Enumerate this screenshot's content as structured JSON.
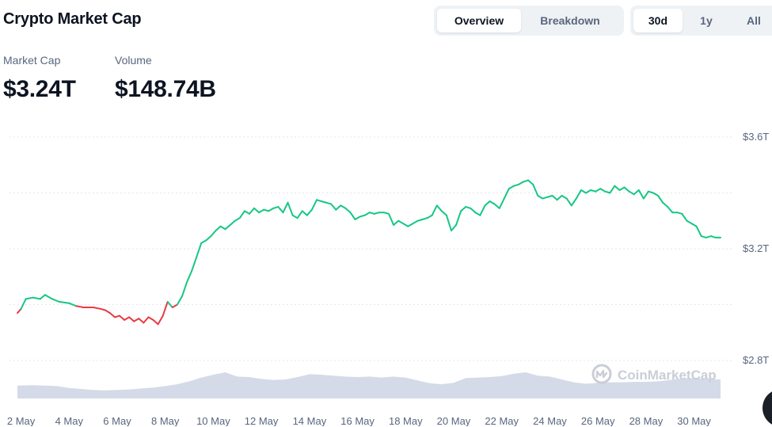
{
  "header": {
    "title": "Crypto Market Cap",
    "view_tabs": [
      {
        "label": "Overview",
        "active": true
      },
      {
        "label": "Breakdown",
        "active": false
      }
    ],
    "range_tabs": [
      {
        "label": "30d",
        "active": true
      },
      {
        "label": "1y",
        "active": false
      },
      {
        "label": "All",
        "active": false
      }
    ]
  },
  "stats": {
    "market_cap_label": "Market Cap",
    "market_cap_value": "$3.24T",
    "volume_label": "Volume",
    "volume_value": "$148.74B"
  },
  "watermark": "CoinMarketCap",
  "colors": {
    "up": "#16c784",
    "down": "#ea3943",
    "volume": "#cfd6e4",
    "grid": "#e4e7ec",
    "axis_text": "#58667e"
  },
  "chart_data": {
    "type": "line",
    "title": "",
    "y_ticks": [
      "$3.6T",
      "$3.2T",
      "$2.8T"
    ],
    "y_tick_values": [
      3.6,
      3.2,
      2.8
    ],
    "ylim": [
      2.8,
      3.6
    ],
    "x_ticks": [
      "2 May",
      "4 May",
      "6 May",
      "8 May",
      "10 May",
      "12 May",
      "14 May",
      "16 May",
      "18 May",
      "20 May",
      "22 May",
      "24 May",
      "26 May",
      "28 May",
      "30 May"
    ],
    "x_tick_days": [
      2,
      4,
      6,
      8,
      10,
      12,
      14,
      16,
      18,
      20,
      22,
      24,
      26,
      28,
      30
    ],
    "xlim": [
      1.85,
      31.1
    ],
    "baseline": 3.0,
    "grid": true,
    "series": [
      {
        "x": [
          1.85,
          2.0,
          2.2,
          2.5,
          2.8,
          3.0,
          3.3,
          3.6,
          4.0,
          4.3,
          4.6,
          5.0,
          5.3,
          5.5,
          5.7,
          5.9,
          6.1,
          6.3,
          6.5,
          6.7,
          6.9,
          7.1,
          7.3,
          7.5,
          7.7,
          7.9,
          8.1,
          8.3,
          8.5,
          8.7,
          8.9,
          9.1,
          9.3,
          9.5,
          9.7,
          9.9,
          10.1,
          10.3,
          10.5,
          10.7,
          10.9,
          11.1,
          11.3,
          11.5,
          11.7,
          11.9,
          12.1,
          12.3,
          12.5,
          12.7,
          12.9,
          13.1,
          13.3,
          13.5,
          13.7,
          13.9,
          14.1,
          14.3,
          14.5,
          14.7,
          14.9,
          15.1,
          15.3,
          15.5,
          15.7,
          15.9,
          16.1,
          16.3,
          16.5,
          16.7,
          16.9,
          17.1,
          17.3,
          17.5,
          17.7,
          17.9,
          18.1,
          18.3,
          18.5,
          18.7,
          18.9,
          19.1,
          19.3,
          19.5,
          19.7,
          19.9,
          20.1,
          20.3,
          20.5,
          20.7,
          20.9,
          21.1,
          21.3,
          21.5,
          21.7,
          21.9,
          22.1,
          22.3,
          22.5,
          22.7,
          22.9,
          23.1,
          23.3,
          23.5,
          23.7,
          23.9,
          24.1,
          24.3,
          24.5,
          24.7,
          24.9,
          25.1,
          25.3,
          25.5,
          25.7,
          25.9,
          26.1,
          26.3,
          26.5,
          26.7,
          26.9,
          27.1,
          27.3,
          27.5,
          27.7,
          27.9,
          28.1,
          28.3,
          28.5,
          28.7,
          28.9,
          29.1,
          29.3,
          29.5,
          29.7,
          29.9,
          30.1,
          30.3,
          30.5,
          30.7,
          30.9,
          31.1
        ],
        "y": [
          2.97,
          2.985,
          3.02,
          3.025,
          3.02,
          3.035,
          3.02,
          3.01,
          3.005,
          2.995,
          2.99,
          2.99,
          2.985,
          2.98,
          2.97,
          2.955,
          2.96,
          2.945,
          2.955,
          2.94,
          2.95,
          2.935,
          2.955,
          2.945,
          2.93,
          2.96,
          3.01,
          2.99,
          3.0,
          3.03,
          3.08,
          3.12,
          3.17,
          3.22,
          3.23,
          3.245,
          3.265,
          3.28,
          3.27,
          3.285,
          3.3,
          3.31,
          3.335,
          3.325,
          3.345,
          3.33,
          3.34,
          3.335,
          3.345,
          3.35,
          3.33,
          3.365,
          3.32,
          3.31,
          3.335,
          3.32,
          3.34,
          3.375,
          3.37,
          3.365,
          3.36,
          3.34,
          3.355,
          3.345,
          3.33,
          3.305,
          3.315,
          3.32,
          3.33,
          3.325,
          3.33,
          3.33,
          3.325,
          3.285,
          3.3,
          3.29,
          3.28,
          3.29,
          3.3,
          3.305,
          3.31,
          3.32,
          3.355,
          3.335,
          3.32,
          3.265,
          3.285,
          3.335,
          3.35,
          3.345,
          3.33,
          3.32,
          3.355,
          3.37,
          3.36,
          3.345,
          3.38,
          3.415,
          3.425,
          3.43,
          3.44,
          3.445,
          3.43,
          3.39,
          3.38,
          3.385,
          3.39,
          3.375,
          3.39,
          3.38,
          3.355,
          3.38,
          3.41,
          3.4,
          3.41,
          3.405,
          3.415,
          3.405,
          3.4,
          3.425,
          3.41,
          3.42,
          3.405,
          3.395,
          3.41,
          3.38,
          3.405,
          3.4,
          3.39,
          3.365,
          3.35,
          3.33,
          3.33,
          3.325,
          3.3,
          3.29,
          3.28,
          3.245,
          3.24,
          3.245,
          3.24,
          3.24
        ]
      }
    ],
    "volume": {
      "x": [
        1.85,
        2.5,
        3.0,
        3.5,
        4.0,
        4.5,
        5.0,
        5.5,
        6.0,
        6.5,
        7.0,
        7.5,
        8.0,
        8.5,
        9.0,
        9.5,
        10.0,
        10.5,
        11.0,
        11.5,
        12.0,
        12.5,
        13.0,
        13.5,
        14.0,
        14.5,
        15.0,
        15.5,
        16.0,
        16.5,
        17.0,
        17.5,
        18.0,
        18.5,
        19.0,
        19.5,
        20.0,
        20.5,
        21.0,
        21.5,
        22.0,
        22.5,
        23.0,
        23.5,
        24.0,
        24.5,
        25.0,
        25.5,
        26.0,
        26.5,
        27.0,
        27.5,
        28.0,
        28.5,
        29.0,
        29.5,
        30.0,
        30.5,
        31.1
      ],
      "values": [
        0.27,
        0.28,
        0.27,
        0.26,
        0.22,
        0.2,
        0.18,
        0.17,
        0.18,
        0.19,
        0.21,
        0.23,
        0.26,
        0.3,
        0.36,
        0.44,
        0.5,
        0.55,
        0.46,
        0.45,
        0.41,
        0.39,
        0.4,
        0.45,
        0.51,
        0.5,
        0.48,
        0.46,
        0.45,
        0.46,
        0.44,
        0.46,
        0.44,
        0.38,
        0.32,
        0.3,
        0.33,
        0.43,
        0.44,
        0.45,
        0.47,
        0.52,
        0.55,
        0.48,
        0.46,
        0.4,
        0.34,
        0.31,
        0.33,
        0.34,
        0.34,
        0.35,
        0.35,
        0.36,
        0.39,
        0.42,
        0.43,
        0.41,
        0.4
      ]
    }
  }
}
